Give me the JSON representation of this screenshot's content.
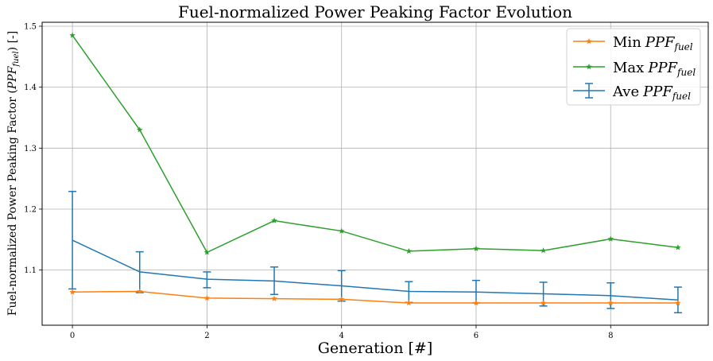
{
  "chart_data": {
    "type": "line",
    "title": "Fuel-normalized Power Peaking Factor Evolution",
    "xlabel": "Generation [#]",
    "ylabel": {
      "prefix": "Fuel-normalized Power Peaking Factor (",
      "symbol": "PPF",
      "subscript": "fuel",
      "suffix": ") [-]"
    },
    "xlim": [
      -0.45,
      9.45
    ],
    "ylim": [
      1.0095,
      1.5065
    ],
    "xticks": [
      0,
      2,
      4,
      6,
      8
    ],
    "yticks": [
      1.1,
      1.2,
      1.3,
      1.4,
      1.5
    ],
    "xtick_labels": [
      "0",
      "2",
      "4",
      "6",
      "8"
    ],
    "ytick_labels": [
      "1.1",
      "1.2",
      "1.3",
      "1.4",
      "1.5"
    ],
    "grid": true,
    "legend_position": "top-right",
    "x": [
      0,
      1,
      2,
      3,
      4,
      5,
      6,
      7,
      8,
      9
    ],
    "series": [
      {
        "name": "Min",
        "name_symbol": "PPF",
        "name_subscript": "fuel",
        "kind": "line",
        "marker": "star",
        "color": "#ff7f0e",
        "values": [
          1.064,
          1.065,
          1.054,
          1.053,
          1.052,
          1.046,
          1.046,
          1.046,
          1.046,
          1.046
        ]
      },
      {
        "name": "Max",
        "name_symbol": "PPF",
        "name_subscript": "fuel",
        "kind": "line",
        "marker": "star",
        "color": "#2ca02c",
        "values": [
          1.485,
          1.33,
          1.129,
          1.181,
          1.164,
          1.131,
          1.135,
          1.132,
          1.151,
          1.137
        ]
      },
      {
        "name": "Ave",
        "name_symbol": "PPF",
        "name_subscript": "fuel",
        "kind": "errorbar",
        "color": "#1f77b4",
        "values": [
          1.149,
          1.097,
          1.085,
          1.082,
          1.074,
          1.065,
          1.064,
          1.061,
          1.058,
          1.051
        ],
        "lower": [
          1.069,
          1.063,
          1.071,
          1.06,
          1.049,
          1.047,
          1.046,
          1.041,
          1.037,
          1.03
        ],
        "upper": [
          1.229,
          1.13,
          1.097,
          1.105,
          1.099,
          1.081,
          1.083,
          1.08,
          1.079,
          1.072
        ]
      }
    ]
  }
}
